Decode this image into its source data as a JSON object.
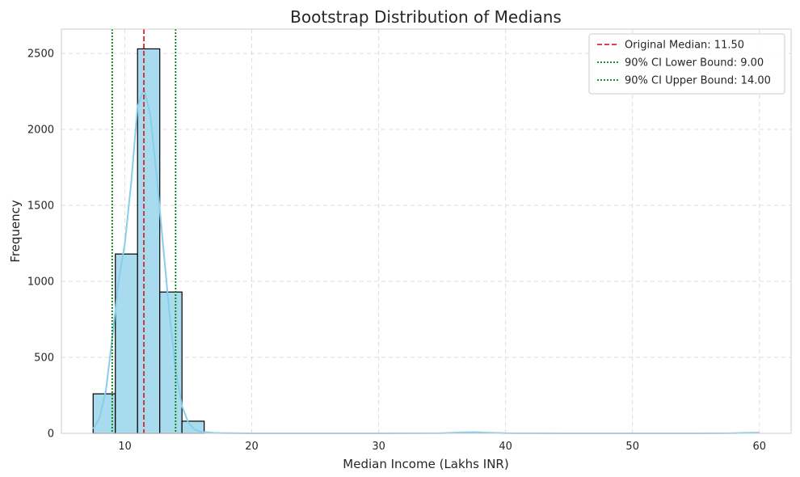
{
  "chart_data": {
    "type": "bar",
    "title": "Bootstrap Distribution of Medians",
    "xlabel": "Median Income (Lakhs INR)",
    "ylabel": "Frequency",
    "xlim": [
      5,
      62.5
    ],
    "ylim": [
      0,
      2660
    ],
    "xticks": [
      10,
      20,
      30,
      40,
      50,
      60
    ],
    "yticks": [
      0,
      500,
      1000,
      1500,
      2000,
      2500
    ],
    "grid": true,
    "legend_position": "top-right",
    "bins": [
      {
        "x0": 7.5,
        "x1": 9.25,
        "count": 260
      },
      {
        "x0": 9.25,
        "x1": 11.0,
        "count": 1180
      },
      {
        "x0": 11.0,
        "x1": 12.75,
        "count": 2530
      },
      {
        "x0": 12.75,
        "x1": 14.5,
        "count": 930
      },
      {
        "x0": 14.5,
        "x1": 16.25,
        "count": 80
      },
      {
        "x0": 16.25,
        "x1": 18.0,
        "count": 0
      },
      {
        "x0": 18.0,
        "x1": 19.75,
        "count": 0
      },
      {
        "x0": 19.75,
        "x1": 21.5,
        "count": 0
      },
      {
        "x0": 21.5,
        "x1": 23.25,
        "count": 0
      },
      {
        "x0": 23.25,
        "x1": 25.0,
        "count": 0
      },
      {
        "x0": 25.0,
        "x1": 26.75,
        "count": 0
      },
      {
        "x0": 26.75,
        "x1": 28.5,
        "count": 0
      },
      {
        "x0": 28.5,
        "x1": 30.25,
        "count": 0
      },
      {
        "x0": 30.25,
        "x1": 32.0,
        "count": 0
      },
      {
        "x0": 32.0,
        "x1": 33.75,
        "count": 0
      },
      {
        "x0": 33.75,
        "x1": 35.5,
        "count": 0
      },
      {
        "x0": 35.5,
        "x1": 37.25,
        "count": 1
      },
      {
        "x0": 37.25,
        "x1": 39.0,
        "count": 1
      },
      {
        "x0": 39.0,
        "x1": 40.75,
        "count": 0
      },
      {
        "x0": 40.75,
        "x1": 42.5,
        "count": 0
      },
      {
        "x0": 42.5,
        "x1": 44.25,
        "count": 0
      },
      {
        "x0": 44.25,
        "x1": 46.0,
        "count": 0
      },
      {
        "x0": 46.0,
        "x1": 47.75,
        "count": 0
      },
      {
        "x0": 47.75,
        "x1": 49.5,
        "count": 0
      },
      {
        "x0": 49.5,
        "x1": 51.25,
        "count": 0
      },
      {
        "x0": 51.25,
        "x1": 53.0,
        "count": 0
      },
      {
        "x0": 53.0,
        "x1": 54.75,
        "count": 0
      },
      {
        "x0": 54.75,
        "x1": 56.5,
        "count": 0
      },
      {
        "x0": 56.5,
        "x1": 58.25,
        "count": 0
      },
      {
        "x0": 58.25,
        "x1": 60.0,
        "count": 1
      }
    ],
    "kde": {
      "x": [
        7.5,
        8.0,
        8.5,
        9.0,
        9.5,
        10.0,
        10.5,
        11.0,
        11.5,
        12.0,
        12.5,
        13.0,
        13.5,
        14.0,
        14.5,
        15.0,
        15.5,
        16.0,
        17.0,
        18.0,
        20.0,
        25.0,
        30.0,
        35.0,
        36.5,
        37.5,
        38.5,
        40.0,
        45.0,
        50.0,
        55.0,
        58.0,
        59.0,
        60.0
      ],
      "y": [
        30,
        100,
        280,
        620,
        1000,
        1250,
        1650,
        2150,
        2270,
        2100,
        1700,
        1250,
        800,
        420,
        180,
        70,
        25,
        10,
        3,
        1,
        0,
        0,
        0,
        1,
        6,
        8,
        5,
        1,
        0,
        0,
        0,
        1,
        4,
        5
      ]
    },
    "reference_lines": [
      {
        "name": "Original Median: 11.50",
        "x": 11.5,
        "color": "#d62728",
        "style": "dashed"
      },
      {
        "name": "90% CI Lower Bound: 9.00",
        "x": 9.0,
        "color": "#008000",
        "style": "dotted"
      },
      {
        "name": "90% CI Upper Bound: 14.00",
        "x": 14.0,
        "color": "#008000",
        "style": "dotted"
      }
    ],
    "colors": {
      "bar_fill": "#a8dbee",
      "bar_edge": "#000000",
      "kde": "#87ceeb",
      "grid": "#dddddd",
      "spine": "#cccccc"
    }
  }
}
